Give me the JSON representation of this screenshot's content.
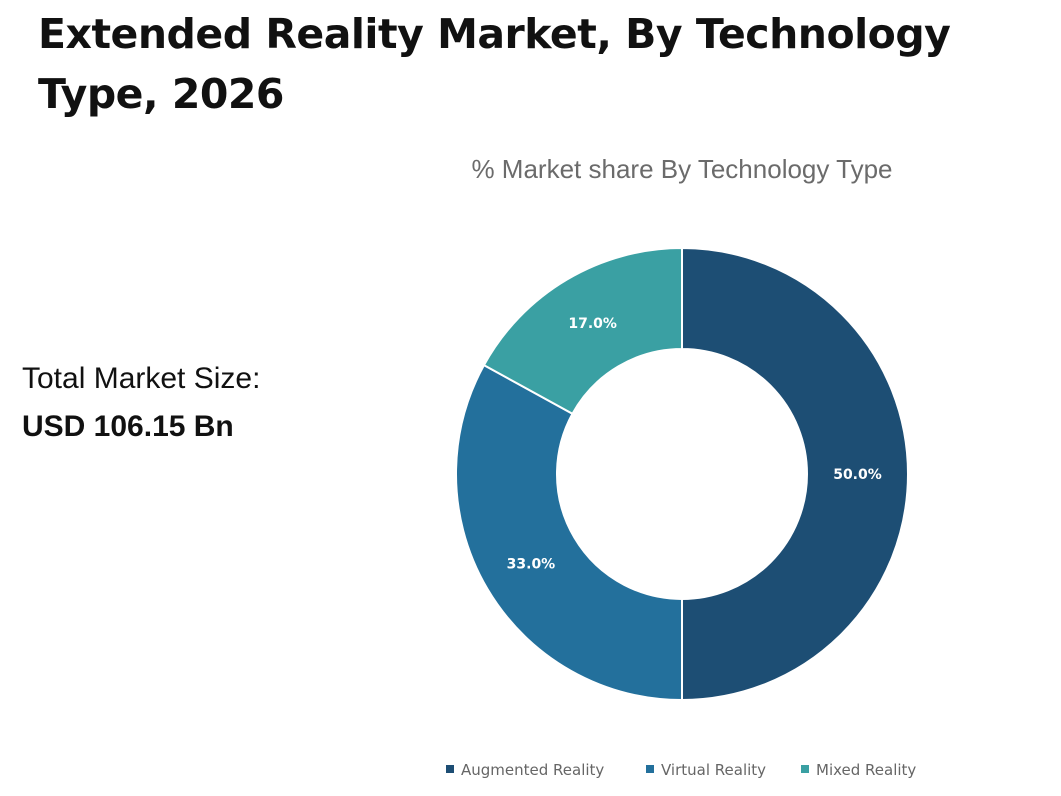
{
  "header": {
    "title": "Extended Reality Market, By Technology Type, 2026"
  },
  "total": {
    "label": "Total Market Size:",
    "value": "USD 106.15 Bn"
  },
  "chart_data": {
    "type": "pie",
    "donut": true,
    "title": "% Market share By Technology Type",
    "categories": [
      "Augmented Reality",
      "Virtual Reality",
      "Mixed Reality"
    ],
    "values": [
      50.0,
      33.0,
      17.0
    ],
    "data_labels": [
      "50.0%",
      "33.0%",
      "17.0%"
    ],
    "colors": [
      "#1d4e74",
      "#23709c",
      "#3aa0a3"
    ],
    "legend_position": "bottom"
  }
}
